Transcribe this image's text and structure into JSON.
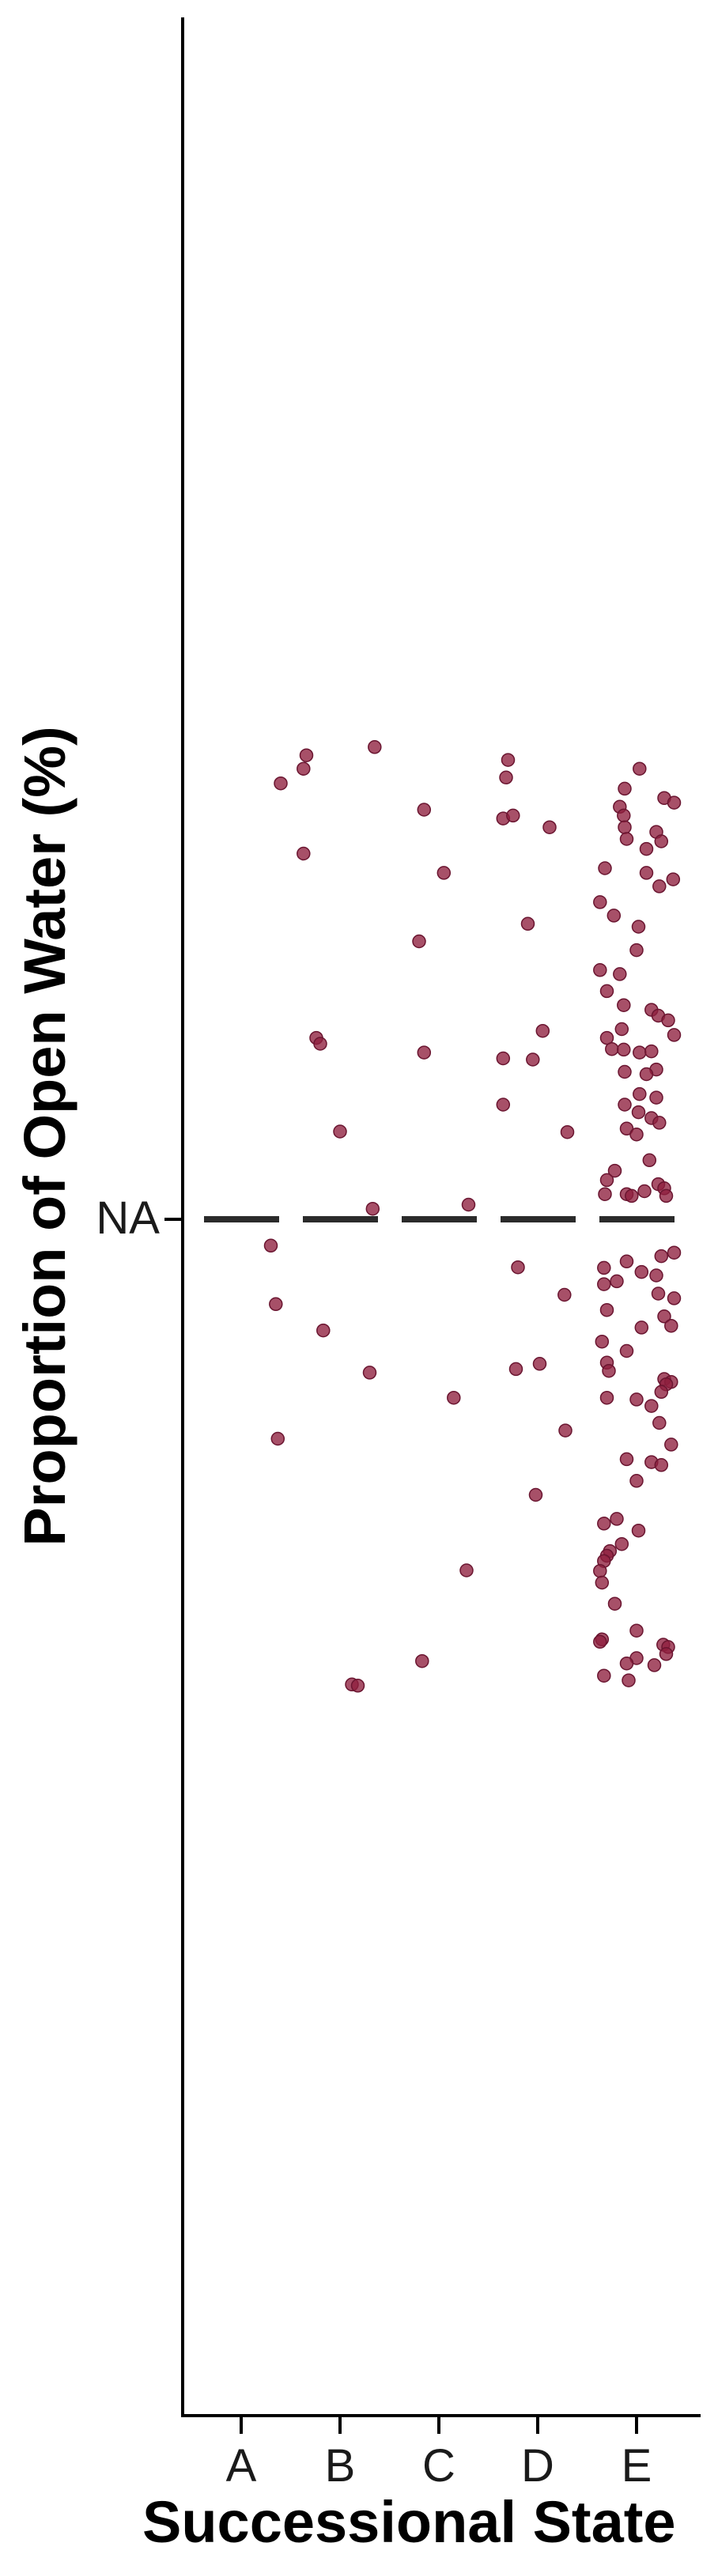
{
  "chart_data": {
    "type": "scatter",
    "jitter": true,
    "categories": [
      "A",
      "B",
      "C",
      "D",
      "E"
    ],
    "xlabel": "Successional State",
    "ylabel": "Proportion of Open Water (%)",
    "y_tick_labels": [
      "NA"
    ],
    "reference_line": {
      "style": "dashed",
      "label": "NA",
      "color": "#2b2b2b"
    },
    "grid": false,
    "legend": "none",
    "point_color": "#8e1f3e",
    "series": [
      {
        "category": "A",
        "points": [
          {
            "dx": 0.4,
            "dy": 0.745
          },
          {
            "dx": 0.3,
            "dy": -0.045
          },
          {
            "dx": 0.35,
            "dy": -0.145
          },
          {
            "dx": 0.37,
            "dy": -0.375
          }
        ]
      },
      {
        "category": "B",
        "points": [
          {
            "dx": -0.37,
            "dy": 0.77
          },
          {
            "dx": -0.34,
            "dy": 0.793
          },
          {
            "dx": -0.37,
            "dy": 0.625
          },
          {
            "dx": -0.24,
            "dy": 0.31
          },
          {
            "dx": -0.2,
            "dy": 0.3
          },
          {
            "dx": 0.0,
            "dy": 0.15
          },
          {
            "dx": 0.33,
            "dy": 0.018
          },
          {
            "dx": -0.17,
            "dy": -0.19
          },
          {
            "dx": 0.3,
            "dy": -0.262
          },
          {
            "dx": 0.35,
            "dy": 0.807
          },
          {
            "dx": 0.12,
            "dy": -0.795
          },
          {
            "dx": 0.18,
            "dy": -0.797
          }
        ]
      },
      {
        "category": "C",
        "points": [
          {
            "dx": -0.15,
            "dy": 0.7
          },
          {
            "dx": 0.05,
            "dy": 0.592
          },
          {
            "dx": -0.2,
            "dy": 0.475
          },
          {
            "dx": -0.15,
            "dy": 0.285
          },
          {
            "dx": 0.3,
            "dy": 0.025
          },
          {
            "dx": 0.15,
            "dy": -0.305
          },
          {
            "dx": 0.28,
            "dy": -0.6
          },
          {
            "dx": -0.17,
            "dy": -0.755
          }
        ]
      },
      {
        "category": "D",
        "points": [
          {
            "dx": -0.3,
            "dy": 0.785
          },
          {
            "dx": -0.32,
            "dy": 0.755
          },
          {
            "dx": -0.35,
            "dy": 0.685
          },
          {
            "dx": -0.25,
            "dy": 0.69
          },
          {
            "dx": 0.12,
            "dy": 0.67
          },
          {
            "dx": -0.1,
            "dy": 0.505
          },
          {
            "dx": 0.05,
            "dy": 0.322
          },
          {
            "dx": -0.35,
            "dy": 0.275
          },
          {
            "dx": -0.05,
            "dy": 0.273
          },
          {
            "dx": -0.35,
            "dy": 0.196
          },
          {
            "dx": 0.3,
            "dy": 0.149
          },
          {
            "dx": -0.2,
            "dy": -0.082
          },
          {
            "dx": 0.27,
            "dy": -0.129
          },
          {
            "dx": -0.22,
            "dy": -0.256
          },
          {
            "dx": 0.02,
            "dy": -0.247
          },
          {
            "dx": 0.28,
            "dy": -0.361
          },
          {
            "dx": -0.02,
            "dy": -0.471
          }
        ]
      },
      {
        "category": "E",
        "points": [
          {
            "dx": 0.03,
            "dy": 0.77
          },
          {
            "dx": -0.12,
            "dy": 0.736
          },
          {
            "dx": 0.28,
            "dy": 0.72
          },
          {
            "dx": 0.38,
            "dy": 0.712
          },
          {
            "dx": -0.17,
            "dy": 0.705
          },
          {
            "dx": -0.13,
            "dy": 0.69
          },
          {
            "dx": -0.12,
            "dy": 0.67
          },
          {
            "dx": 0.2,
            "dy": 0.662
          },
          {
            "dx": 0.25,
            "dy": 0.646
          },
          {
            "dx": -0.1,
            "dy": 0.65
          },
          {
            "dx": 0.1,
            "dy": 0.633
          },
          {
            "dx": -0.32,
            "dy": 0.6
          },
          {
            "dx": 0.1,
            "dy": 0.592
          },
          {
            "dx": 0.37,
            "dy": 0.581
          },
          {
            "dx": 0.23,
            "dy": 0.569
          },
          {
            "dx": -0.37,
            "dy": 0.542
          },
          {
            "dx": -0.23,
            "dy": 0.519
          },
          {
            "dx": 0.02,
            "dy": 0.5
          },
          {
            "dx": 0.0,
            "dy": 0.46
          },
          {
            "dx": -0.37,
            "dy": 0.426
          },
          {
            "dx": -0.17,
            "dy": 0.419
          },
          {
            "dx": -0.3,
            "dy": 0.39
          },
          {
            "dx": -0.13,
            "dy": 0.366
          },
          {
            "dx": 0.15,
            "dy": 0.358
          },
          {
            "dx": 0.22,
            "dy": 0.348
          },
          {
            "dx": 0.32,
            "dy": 0.34
          },
          {
            "dx": -0.15,
            "dy": 0.325
          },
          {
            "dx": -0.3,
            "dy": 0.31
          },
          {
            "dx": 0.38,
            "dy": 0.315
          },
          {
            "dx": -0.25,
            "dy": 0.291
          },
          {
            "dx": -0.13,
            "dy": 0.29
          },
          {
            "dx": 0.03,
            "dy": 0.285
          },
          {
            "dx": 0.15,
            "dy": 0.287
          },
          {
            "dx": 0.2,
            "dy": 0.256
          },
          {
            "dx": -0.12,
            "dy": 0.252
          },
          {
            "dx": 0.1,
            "dy": 0.248
          },
          {
            "dx": 0.03,
            "dy": 0.214
          },
          {
            "dx": 0.2,
            "dy": 0.208
          },
          {
            "dx": -0.12,
            "dy": 0.196
          },
          {
            "dx": 0.02,
            "dy": 0.183
          },
          {
            "dx": 0.15,
            "dy": 0.173
          },
          {
            "dx": 0.23,
            "dy": 0.165
          },
          {
            "dx": -0.1,
            "dy": 0.155
          },
          {
            "dx": 0.0,
            "dy": 0.145
          },
          {
            "dx": 0.13,
            "dy": 0.101
          },
          {
            "dx": -0.22,
            "dy": 0.083
          },
          {
            "dx": -0.3,
            "dy": 0.067
          },
          {
            "dx": 0.22,
            "dy": 0.06
          },
          {
            "dx": 0.28,
            "dy": 0.053
          },
          {
            "dx": 0.08,
            "dy": 0.048
          },
          {
            "dx": -0.32,
            "dy": 0.043
          },
          {
            "dx": -0.1,
            "dy": 0.043
          },
          {
            "dx": -0.05,
            "dy": 0.04
          },
          {
            "dx": 0.3,
            "dy": 0.04
          },
          {
            "dx": 0.38,
            "dy": -0.057
          },
          {
            "dx": 0.25,
            "dy": -0.063
          },
          {
            "dx": -0.1,
            "dy": -0.072
          },
          {
            "dx": -0.33,
            "dy": -0.083
          },
          {
            "dx": 0.05,
            "dy": -0.09
          },
          {
            "dx": 0.2,
            "dy": -0.096
          },
          {
            "dx": -0.2,
            "dy": -0.106
          },
          {
            "dx": -0.33,
            "dy": -0.111
          },
          {
            "dx": 0.22,
            "dy": -0.127
          },
          {
            "dx": 0.38,
            "dy": -0.135
          },
          {
            "dx": -0.3,
            "dy": -0.155
          },
          {
            "dx": 0.28,
            "dy": -0.166
          },
          {
            "dx": 0.35,
            "dy": -0.182
          },
          {
            "dx": 0.05,
            "dy": -0.185
          },
          {
            "dx": -0.35,
            "dy": -0.209
          },
          {
            "dx": -0.1,
            "dy": -0.225
          },
          {
            "dx": -0.3,
            "dy": -0.245
          },
          {
            "dx": -0.28,
            "dy": -0.259
          },
          {
            "dx": 0.28,
            "dy": -0.273
          },
          {
            "dx": 0.35,
            "dy": -0.278
          },
          {
            "dx": 0.3,
            "dy": -0.282
          },
          {
            "dx": 0.25,
            "dy": -0.295
          },
          {
            "dx": -0.3,
            "dy": -0.305
          },
          {
            "dx": 0.0,
            "dy": -0.308
          },
          {
            "dx": 0.15,
            "dy": -0.319
          },
          {
            "dx": 0.23,
            "dy": -0.348
          },
          {
            "dx": 0.35,
            "dy": -0.385
          },
          {
            "dx": -0.1,
            "dy": -0.41
          },
          {
            "dx": 0.15,
            "dy": -0.415
          },
          {
            "dx": 0.25,
            "dy": -0.42
          },
          {
            "dx": 0.0,
            "dy": -0.447
          },
          {
            "dx": -0.2,
            "dy": -0.512
          },
          {
            "dx": -0.33,
            "dy": -0.52
          },
          {
            "dx": 0.02,
            "dy": -0.532
          },
          {
            "dx": -0.15,
            "dy": -0.555
          },
          {
            "dx": -0.27,
            "dy": -0.567
          },
          {
            "dx": -0.3,
            "dy": -0.575
          },
          {
            "dx": -0.33,
            "dy": -0.584
          },
          {
            "dx": -0.37,
            "dy": -0.601
          },
          {
            "dx": -0.35,
            "dy": -0.621
          },
          {
            "dx": -0.22,
            "dy": -0.657
          },
          {
            "dx": 0.0,
            "dy": -0.703
          },
          {
            "dx": -0.35,
            "dy": -0.718
          },
          {
            "dx": -0.37,
            "dy": -0.722
          },
          {
            "dx": 0.27,
            "dy": -0.727
          },
          {
            "dx": 0.32,
            "dy": -0.731
          },
          {
            "dx": 0.3,
            "dy": -0.743
          },
          {
            "dx": 0.0,
            "dy": -0.75
          },
          {
            "dx": -0.1,
            "dy": -0.759
          },
          {
            "dx": -0.33,
            "dy": -0.78
          },
          {
            "dx": 0.18,
            "dy": -0.762
          },
          {
            "dx": -0.08,
            "dy": -0.788
          }
        ]
      }
    ]
  }
}
